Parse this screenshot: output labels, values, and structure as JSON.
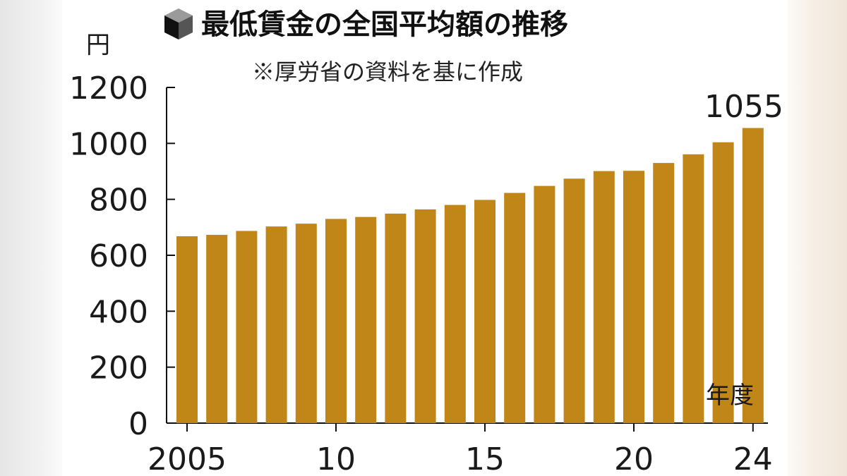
{
  "chart_data": {
    "type": "bar",
    "title": "最低賃金の全国平均額の推移",
    "subtitle": "※厚労省の資料を基に作成",
    "ylabel": "円",
    "xlabel": "年度",
    "ylim": [
      0,
      1200
    ],
    "yticks": [
      "0",
      "200",
      "400",
      "600",
      "800",
      "1000",
      "1200"
    ],
    "xtick_labels": [
      {
        "year": 2005,
        "label": "2005"
      },
      {
        "year": 2010,
        "label": "10"
      },
      {
        "year": 2015,
        "label": "15"
      },
      {
        "year": 2020,
        "label": "20"
      },
      {
        "year": 2024,
        "label": "24"
      }
    ],
    "x": [
      2005,
      2006,
      2007,
      2008,
      2009,
      2010,
      2011,
      2012,
      2013,
      2014,
      2015,
      2016,
      2017,
      2018,
      2019,
      2020,
      2021,
      2022,
      2023,
      2024
    ],
    "values": [
      668,
      673,
      687,
      703,
      713,
      730,
      737,
      749,
      764,
      780,
      798,
      823,
      848,
      874,
      901,
      902,
      930,
      961,
      1004,
      1055
    ],
    "annotation": {
      "year": 2024,
      "text": "1055"
    },
    "bar_color": "#c08618",
    "grid": false
  }
}
